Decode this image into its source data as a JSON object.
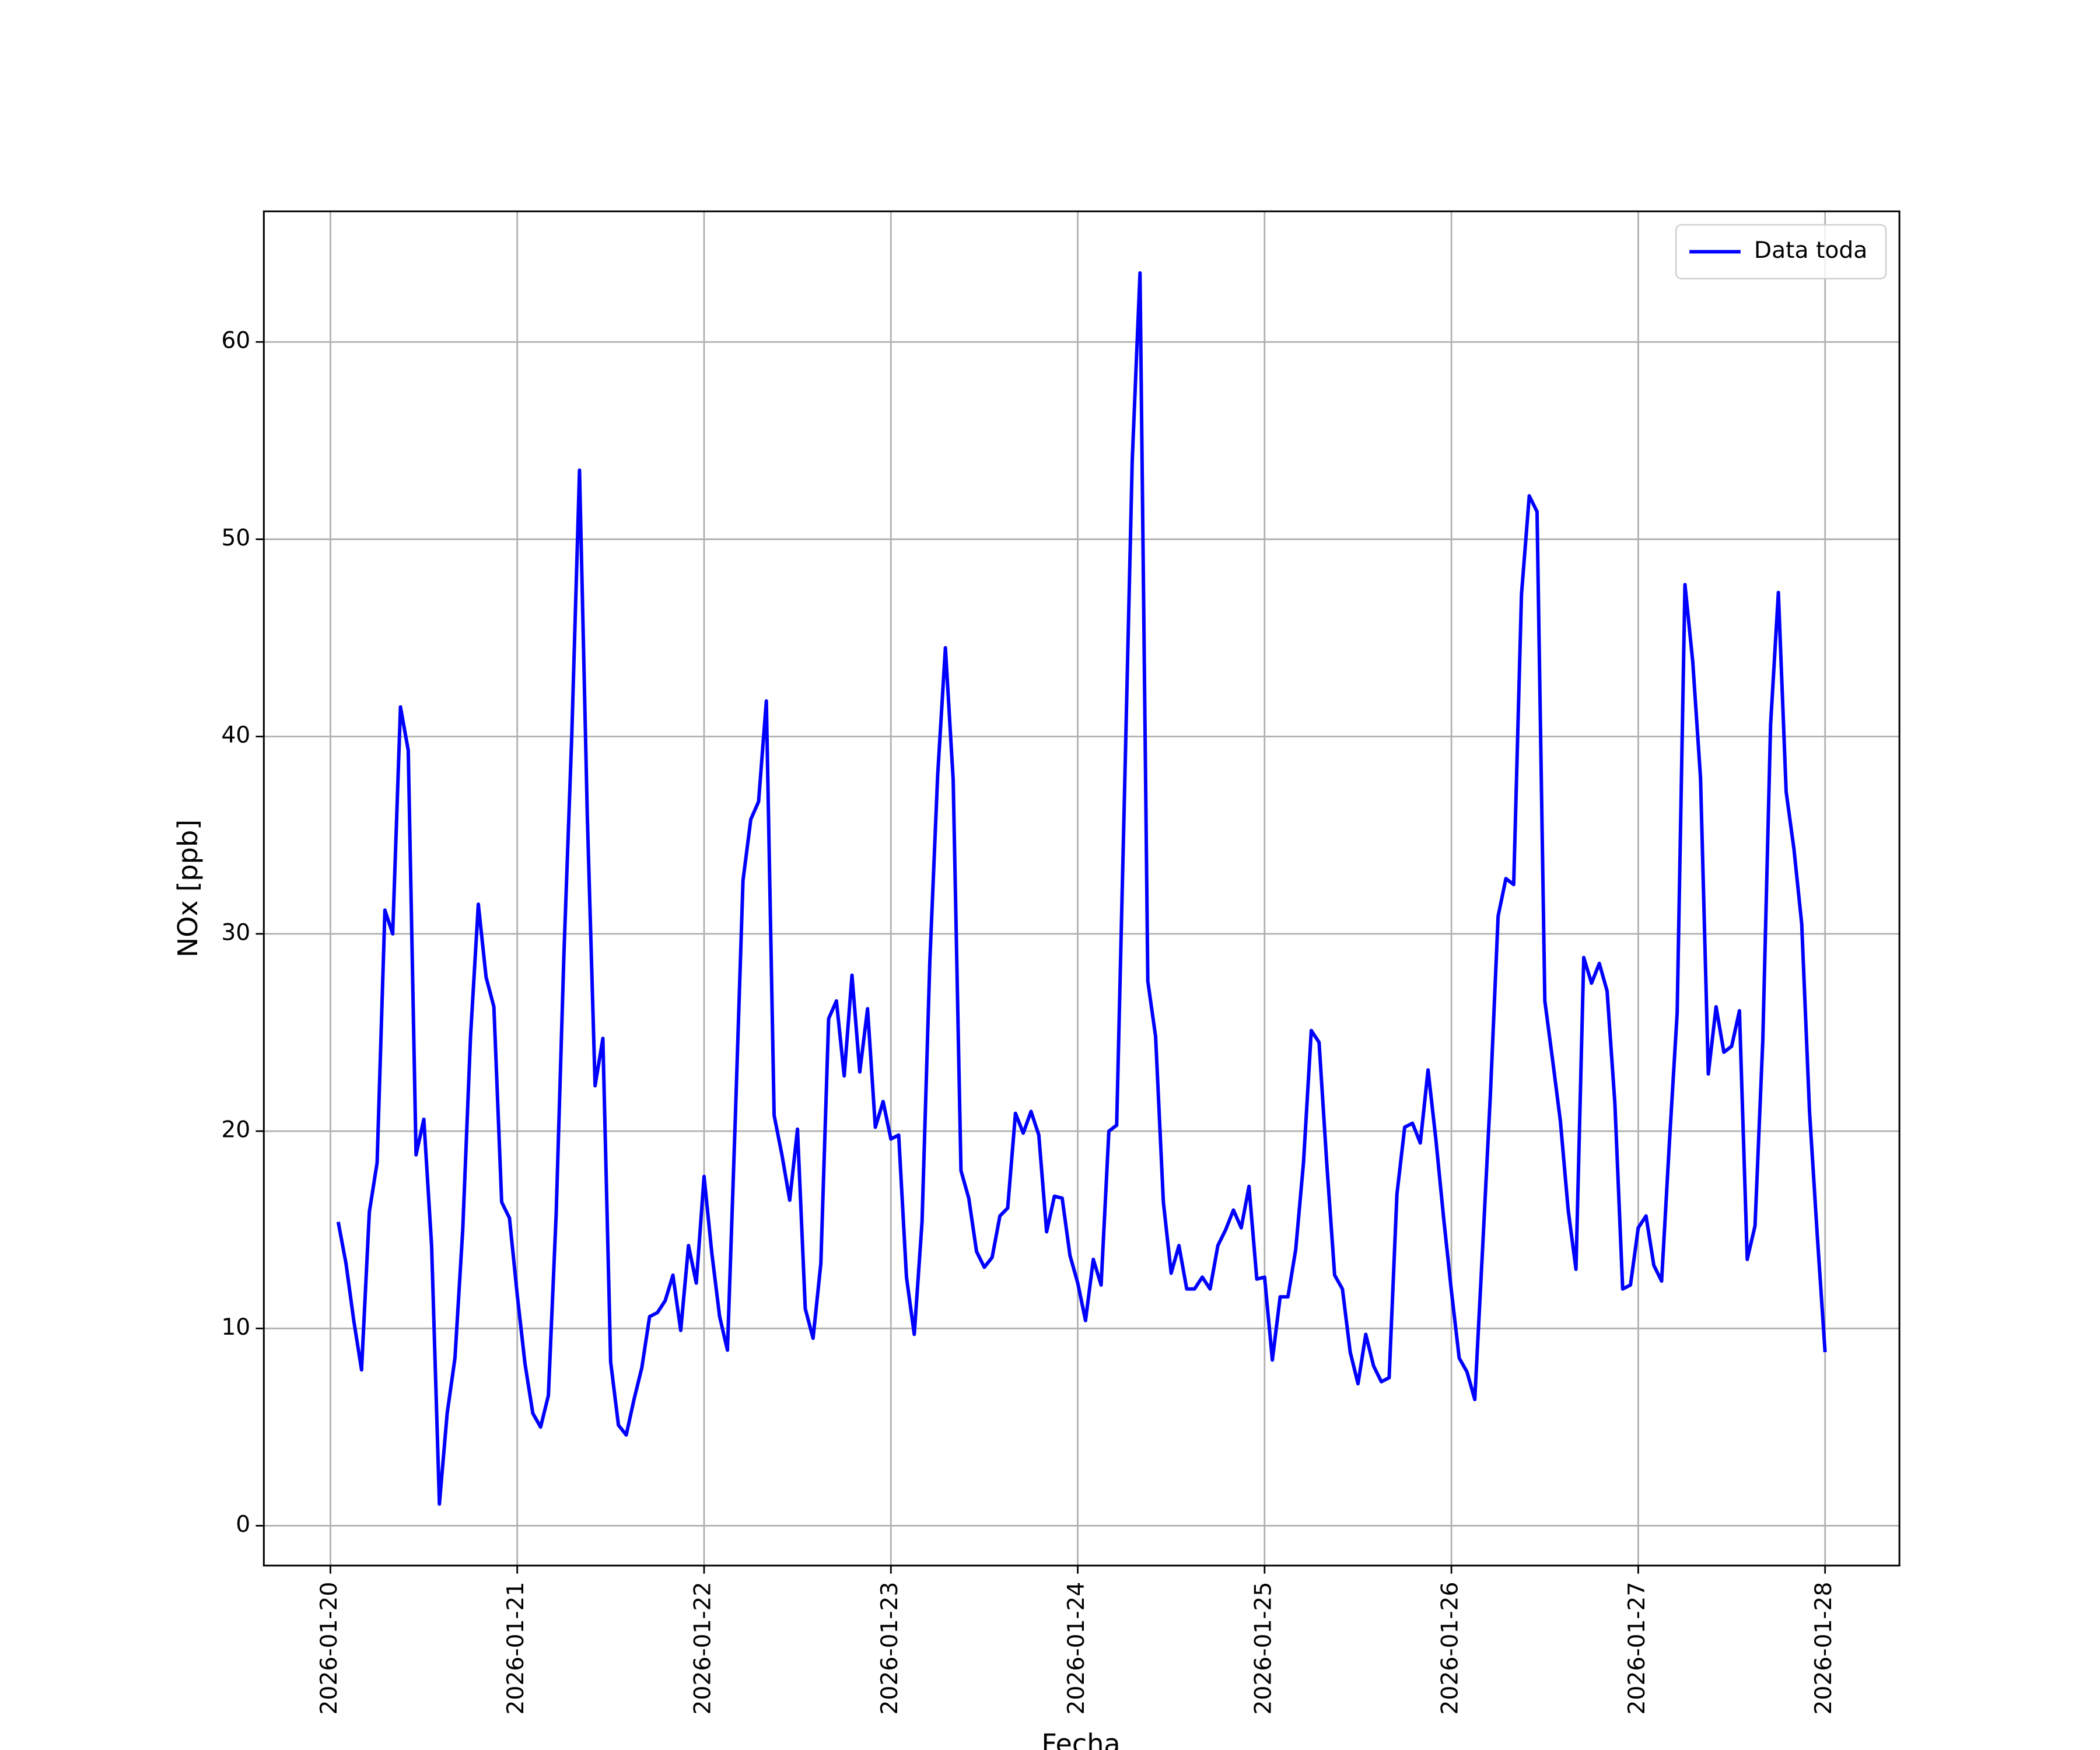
{
  "chart_data": {
    "type": "line",
    "x_label": "Fecha",
    "y_label": "NOx [ppb]",
    "legend": "upper right",
    "grid": true,
    "xlim": [
      -8.55,
      201.55
    ],
    "ylim": [
      -2.02,
      66.62
    ],
    "xticks": [
      {
        "value": 0,
        "label": "2026-01-20"
      },
      {
        "value": 24,
        "label": "2026-01-21"
      },
      {
        "value": 48,
        "label": "2026-01-22"
      },
      {
        "value": 72,
        "label": "2026-01-23"
      },
      {
        "value": 96,
        "label": "2026-01-24"
      },
      {
        "value": 120,
        "label": "2026-01-25"
      },
      {
        "value": 144,
        "label": "2026-01-26"
      },
      {
        "value": 168,
        "label": "2026-01-27"
      },
      {
        "value": 192,
        "label": "2026-01-28"
      }
    ],
    "yticks": [
      0,
      10,
      20,
      30,
      40,
      50,
      60
    ],
    "x": [
      1,
      2,
      3,
      4,
      5,
      6,
      7,
      8,
      9,
      10,
      11,
      12,
      13,
      14,
      15,
      16,
      17,
      18,
      19,
      20,
      21,
      22,
      23,
      24,
      25,
      26,
      27,
      28,
      29,
      30,
      31,
      32,
      33,
      34,
      35,
      36,
      37,
      38,
      39,
      40,
      41,
      42,
      43,
      44,
      45,
      46,
      47,
      48,
      49,
      50,
      51,
      52,
      53,
      54,
      55,
      56,
      57,
      58,
      59,
      60,
      61,
      62,
      63,
      64,
      65,
      66,
      67,
      68,
      69,
      70,
      71,
      72,
      73,
      74,
      75,
      76,
      77,
      78,
      79,
      80,
      81,
      82,
      83,
      84,
      85,
      86,
      87,
      88,
      89,
      90,
      91,
      92,
      93,
      94,
      95,
      96,
      97,
      98,
      99,
      100,
      101,
      102,
      103,
      104,
      105,
      106,
      107,
      108,
      109,
      110,
      111,
      112,
      113,
      114,
      115,
      116,
      117,
      118,
      119,
      120,
      121,
      122,
      123,
      124,
      125,
      126,
      127,
      128,
      129,
      130,
      131,
      132,
      133,
      134,
      135,
      136,
      137,
      138,
      139,
      140,
      141,
      142,
      143,
      144,
      145,
      146,
      147,
      148,
      149,
      150,
      151,
      152,
      153,
      154,
      155,
      156,
      157,
      158,
      159,
      160,
      161,
      162,
      163,
      164,
      165,
      166,
      167,
      168,
      169,
      170,
      171,
      172,
      173,
      174,
      175,
      176,
      177,
      178,
      179,
      180,
      181,
      182,
      183,
      184,
      185,
      186,
      187,
      188,
      189,
      190,
      191,
      192
    ],
    "series": [
      {
        "name": "Data toda",
        "color": "#0000ff",
        "values": [
          15.4,
          13.3,
          10.4,
          7.9,
          15.9,
          18.4,
          31.2,
          30.0,
          41.5,
          39.3,
          18.8,
          20.6,
          14.2,
          1.1,
          5.7,
          8.5,
          15.0,
          24.8,
          31.5,
          27.8,
          26.3,
          16.4,
          15.6,
          11.7,
          8.2,
          5.7,
          5.0,
          6.6,
          15.8,
          29.0,
          40.0,
          53.5,
          36.0,
          22.3,
          24.7,
          8.3,
          5.1,
          4.6,
          6.4,
          8.0,
          10.6,
          10.8,
          11.4,
          12.7,
          9.9,
          14.2,
          12.3,
          17.7,
          13.8,
          10.6,
          8.9,
          20.5,
          32.7,
          35.8,
          36.7,
          41.8,
          20.8,
          18.8,
          16.5,
          20.1,
          11.0,
          9.5,
          13.3,
          25.7,
          26.6,
          22.8,
          27.9,
          23.0,
          26.2,
          20.2,
          21.5,
          19.6,
          19.8,
          12.6,
          9.7,
          15.4,
          28.6,
          38.0,
          44.5,
          37.8,
          18.0,
          16.6,
          13.9,
          13.1,
          13.6,
          15.7,
          16.1,
          20.9,
          19.9,
          21.0,
          19.8,
          14.9,
          16.7,
          16.6,
          13.7,
          12.3,
          10.4,
          13.5,
          12.2,
          20.0,
          20.3,
          37.0,
          54.0,
          63.5,
          27.6,
          24.8,
          16.4,
          12.8,
          14.2,
          12.0,
          12.0,
          12.6,
          12.0,
          14.2,
          15.0,
          16.0,
          15.1,
          17.2,
          12.5,
          12.6,
          8.4,
          11.6,
          11.6,
          14.0,
          18.4,
          25.1,
          24.5,
          18.3,
          12.7,
          12.0,
          8.8,
          7.2,
          9.7,
          8.1,
          7.3,
          7.5,
          16.8,
          20.2,
          20.4,
          19.4,
          23.1,
          19.6,
          15.6,
          11.9,
          8.5,
          7.8,
          6.4,
          14.0,
          21.8,
          30.9,
          32.8,
          32.5,
          47.2,
          52.2,
          51.4,
          26.6,
          23.6,
          20.5,
          16.0,
          13.0,
          28.8,
          27.5,
          28.5,
          27.1,
          21.4,
          12.0,
          12.2,
          15.1,
          15.7,
          13.2,
          12.4,
          19.4,
          26.0,
          47.7,
          43.8,
          37.9,
          22.9,
          26.3,
          24.0,
          24.3,
          26.1,
          13.5,
          15.2,
          24.6,
          40.6,
          47.3,
          37.2,
          34.3,
          30.5,
          21.0,
          14.7,
          8.8
        ]
      }
    ]
  }
}
